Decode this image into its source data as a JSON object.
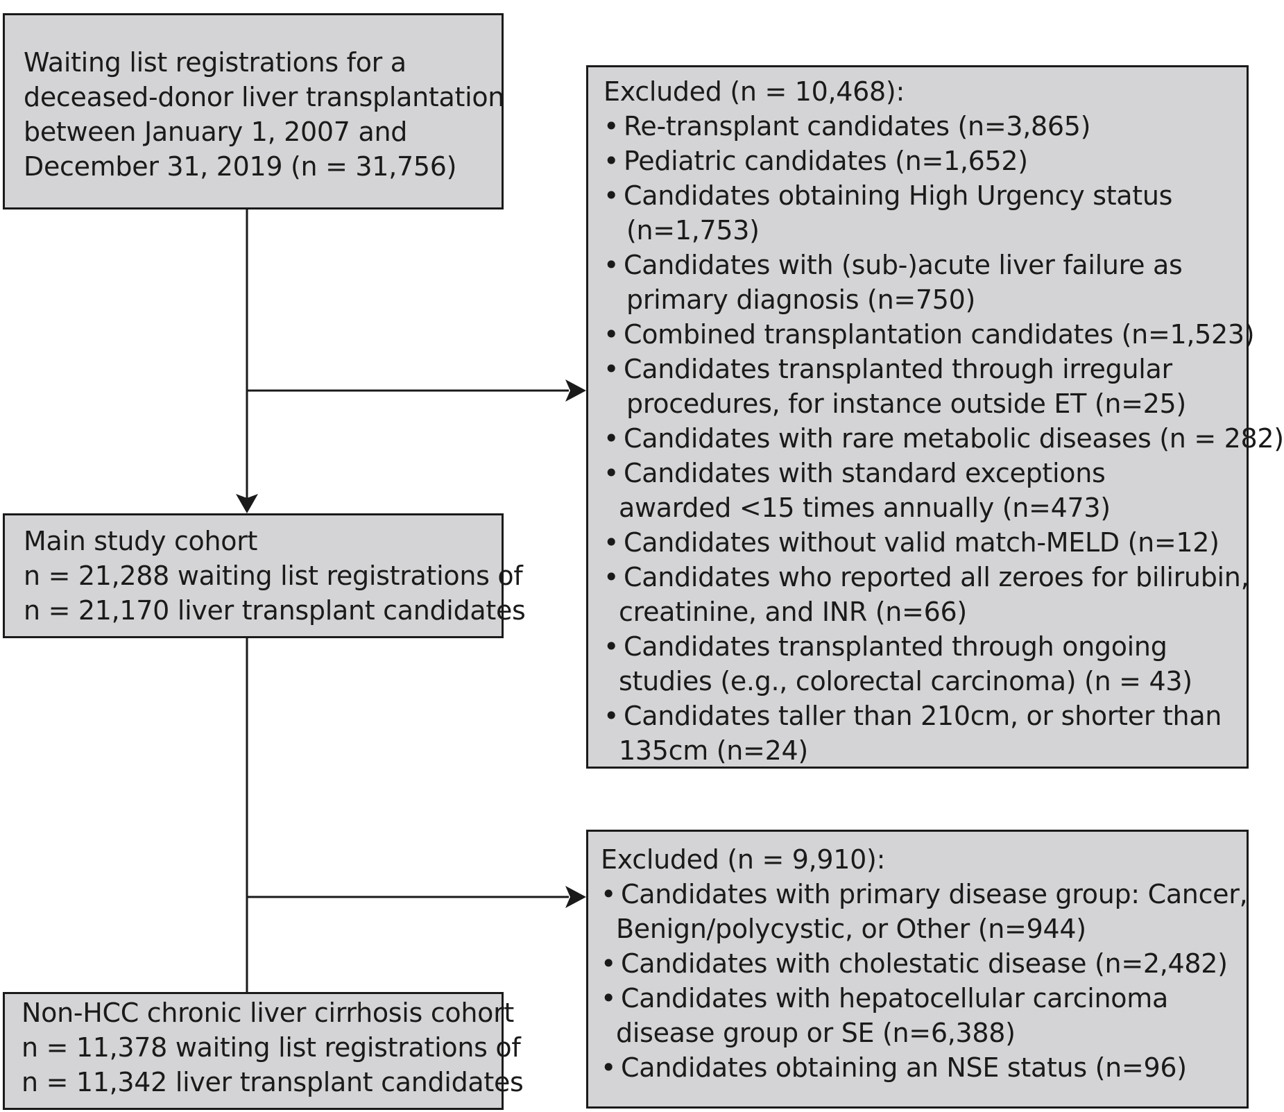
{
  "start_box": {
    "lines": [
      "Waiting list registrations for a",
      "deceased-donor liver transplantation",
      "between January 1, 2007 and",
      "December 31, 2019 (n = 31,756)"
    ]
  },
  "main_cohort_box": {
    "lines": [
      "Main study cohort",
      "n = 21,288 waiting list registrations of",
      "n = 21,170 liver transplant candidates"
    ]
  },
  "final_cohort_box": {
    "lines": [
      "Non-HCC chronic liver cirrhosis cohort",
      "n = 11,378 waiting list registrations of",
      "n = 11,342 liver transplant candidates"
    ]
  },
  "exclusion_1": {
    "header": "Excluded (n = 10,468):",
    "bullet": "•",
    "items": [
      {
        "line1": "Re-transplant candidates (n=3,865)",
        "line2": ""
      },
      {
        "line1": "Pediatric candidates (n=1,652)",
        "line2": ""
      },
      {
        "line1": "Candidates obtaining High Urgency status",
        "line2": "(n=1,753)"
      },
      {
        "line1": "Candidates with (sub-)acute liver failure as",
        "line2": "primary diagnosis (n=750)"
      },
      {
        "line1": "Combined transplantation candidates (n=1,523)",
        "line2": ""
      },
      {
        "line1": "Candidates transplanted through irregular",
        "line2": "procedures, for instance outside ET (n=25)"
      },
      {
        "line1": "Candidates with rare metabolic diseases (n = 282)",
        "line2": ""
      },
      {
        "line1": "Candidates with standard exceptions",
        "line2": "awarded <15 times annually (n=473)"
      },
      {
        "line1": "Candidates without valid match-MELD (n=12)",
        "line2": ""
      },
      {
        "line1": "Candidates who reported all zeroes for bilirubin,",
        "line2": "creatinine, and INR (n=66)"
      },
      {
        "line1": "Candidates transplanted through ongoing",
        "line2": "studies (e.g., colorectal carcinoma) (n = 43)"
      },
      {
        "line1": "Candidates taller than 210cm, or shorter than",
        "line2": "135cm (n=24)"
      }
    ]
  },
  "exclusion_2": {
    "header": "Excluded (n = 9,910):",
    "bullet": "•",
    "items": [
      {
        "line1": "Candidates with primary disease group: Cancer,",
        "line2": "Benign/polycystic, or Other (n=944)"
      },
      {
        "line1": "Candidates with cholestatic disease (n=2,482)",
        "line2": ""
      },
      {
        "line1": "Candidates with hepatocellular carcinoma",
        "line2": "disease group or SE (n=6,388)"
      },
      {
        "line1": "Candidates obtaining an NSE status (n=96)",
        "line2": ""
      }
    ]
  },
  "colors": {
    "box_fill": "#d4d4d6",
    "stroke": "#1a1a1a",
    "text": "#1a1a1a"
  }
}
